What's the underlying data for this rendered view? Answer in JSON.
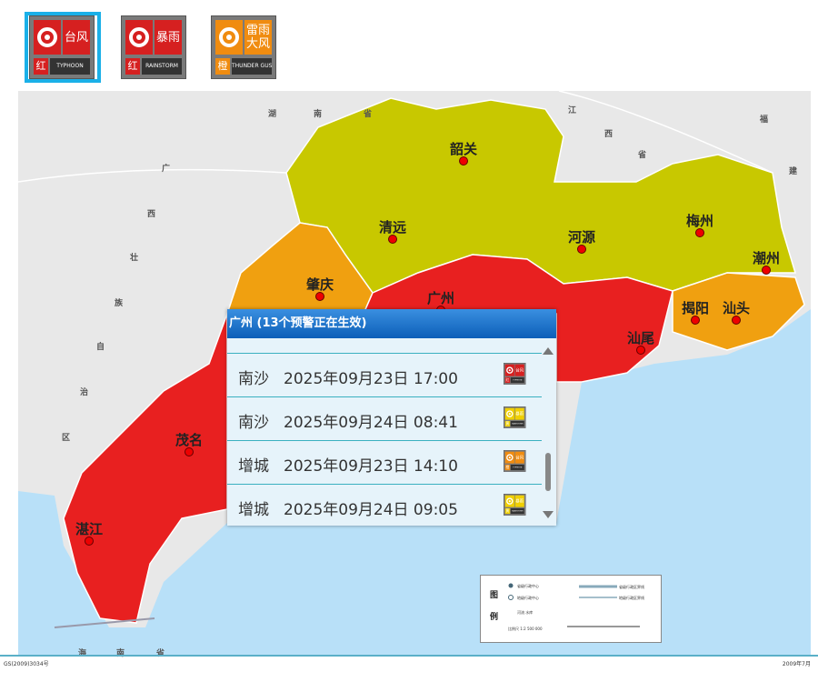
{
  "warning_icons": [
    {
      "name": "台风",
      "level": "红",
      "en": "TYPHOON"
    },
    {
      "name": "暴雨",
      "level": "红",
      "en": "RAINSTORM"
    },
    {
      "name": "雷雨大风",
      "level": "橙",
      "en": "THUNDER GUST"
    }
  ],
  "cities": [
    "韶关",
    "清远",
    "河源",
    "梅州",
    "潮州",
    "肇庆",
    "广州",
    "揭阳",
    "汕头",
    "汕尾",
    "茂名",
    "湛江"
  ],
  "map_labels": [
    "湖",
    "南",
    "省",
    "江",
    "西",
    "省",
    "福",
    "建",
    "广",
    "西",
    "壮",
    "族",
    "自",
    "治",
    "区",
    "海",
    "南",
    "省"
  ],
  "popup": {
    "title": "广州 (13个预警正在生效)",
    "items": [
      {
        "place": "南沙",
        "time": "2025年09月23日 17:00",
        "icon": {
          "name": "台风",
          "level": "红",
          "en": "TYPHOON"
        }
      },
      {
        "place": "南沙",
        "time": "2025年09月24日 08:41",
        "icon": {
          "name": "暴雨",
          "level": "黄",
          "en": "RAINSTORM"
        }
      },
      {
        "place": "增城",
        "time": "2025年09月23日 14:10",
        "icon": {
          "name": "台风",
          "level": "橙",
          "en": "TYPHOON"
        }
      },
      {
        "place": "增城",
        "time": "2025年09月24日 09:05",
        "icon": {
          "name": "暴雨",
          "level": "黄",
          "en": "RAINSTORM"
        }
      }
    ]
  },
  "legend": {
    "title": [
      "图",
      "例"
    ],
    "items": [
      "省级行政中心",
      "地级行政中心",
      "河流 水库",
      "省级行政区界线",
      "地级行政区界线",
      "比例尺 1:2 500 000"
    ]
  },
  "footer": [
    "GS(2009)3034号",
    "2009年7月"
  ]
}
